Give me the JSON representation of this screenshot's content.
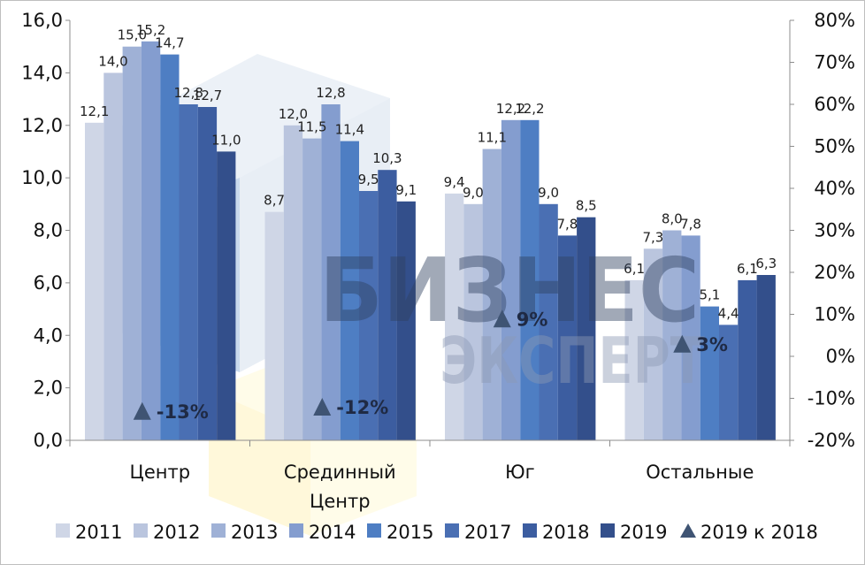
{
  "chart_data": {
    "type": "bar",
    "categories": [
      [
        "Центр"
      ],
      [
        "Срединный",
        "Центр"
      ],
      [
        "Юг"
      ],
      [
        "Остальные"
      ]
    ],
    "series": [
      {
        "name": "2011",
        "color": "#cfd6e6",
        "values": [
          12.1,
          8.7,
          9.4,
          6.1
        ]
      },
      {
        "name": "2012",
        "color": "#bac5de",
        "values": [
          14.0,
          12.0,
          9.0,
          7.3
        ]
      },
      {
        "name": "2013",
        "color": "#9fb1d6",
        "values": [
          15.0,
          11.5,
          11.1,
          8.0
        ]
      },
      {
        "name": "2014",
        "color": "#849dcf",
        "values": [
          15.2,
          12.8,
          12.2,
          7.8
        ]
      },
      {
        "name": "2015",
        "color": "#4e7ec3",
        "values": [
          14.7,
          11.4,
          12.2,
          5.1
        ]
      },
      {
        "name": "2017",
        "color": "#4a6fb3",
        "values": [
          12.8,
          9.5,
          9.0,
          4.4
        ]
      },
      {
        "name": "2018",
        "color": "#3c5da0",
        "values": [
          12.7,
          10.3,
          7.8,
          6.1
        ]
      },
      {
        "name": "2019",
        "color": "#334f8b",
        "values": [
          11.0,
          9.1,
          8.5,
          6.3
        ]
      }
    ],
    "value_labels": [
      [
        "12,1",
        "14,0",
        "15,0",
        "15,2",
        "14,7",
        "12,8",
        "12,7",
        "11,0"
      ],
      [
        "8,7",
        "12,0",
        "11,5",
        "12,8",
        "11,4",
        "9,5",
        "10,3",
        "9,1"
      ],
      [
        "9,4",
        "9,0",
        "11,1",
        "12,2",
        "12,2",
        "9,0",
        "7,8",
        "8,5"
      ],
      [
        "6,1",
        "7,3",
        "8,0",
        "7,8",
        "5,1",
        "4,4",
        "6,1",
        "6,3"
      ]
    ],
    "change_series": {
      "name": "2019 к 2018",
      "color": "#3f5473",
      "values": [
        -13,
        -12,
        9,
        3
      ],
      "labels": [
        "-13%",
        "-12%",
        "9%",
        "3%"
      ]
    },
    "y_left": {
      "range": [
        0,
        16
      ],
      "ticks": [
        0,
        2,
        4,
        6,
        8,
        10,
        12,
        14,
        16
      ],
      "tick_labels": [
        "0,0",
        "2,0",
        "4,0",
        "6,0",
        "8,0",
        "10,0",
        "12,0",
        "14,0",
        "16,0"
      ]
    },
    "y_right": {
      "range": [
        -20,
        80
      ],
      "ticks": [
        -20,
        -10,
        0,
        10,
        20,
        30,
        40,
        50,
        60,
        70,
        80
      ],
      "tick_labels": [
        "-20%",
        "-10%",
        "0%",
        "10%",
        "20%",
        "30%",
        "40%",
        "50%",
        "60%",
        "70%",
        "80%"
      ]
    },
    "legend_position": "bottom",
    "grid": false,
    "title": "",
    "xlabel": "",
    "ylabel": ""
  },
  "watermark": {
    "line1": "БИЗНЕС",
    "line2": "ЭКСПЕРТ"
  }
}
